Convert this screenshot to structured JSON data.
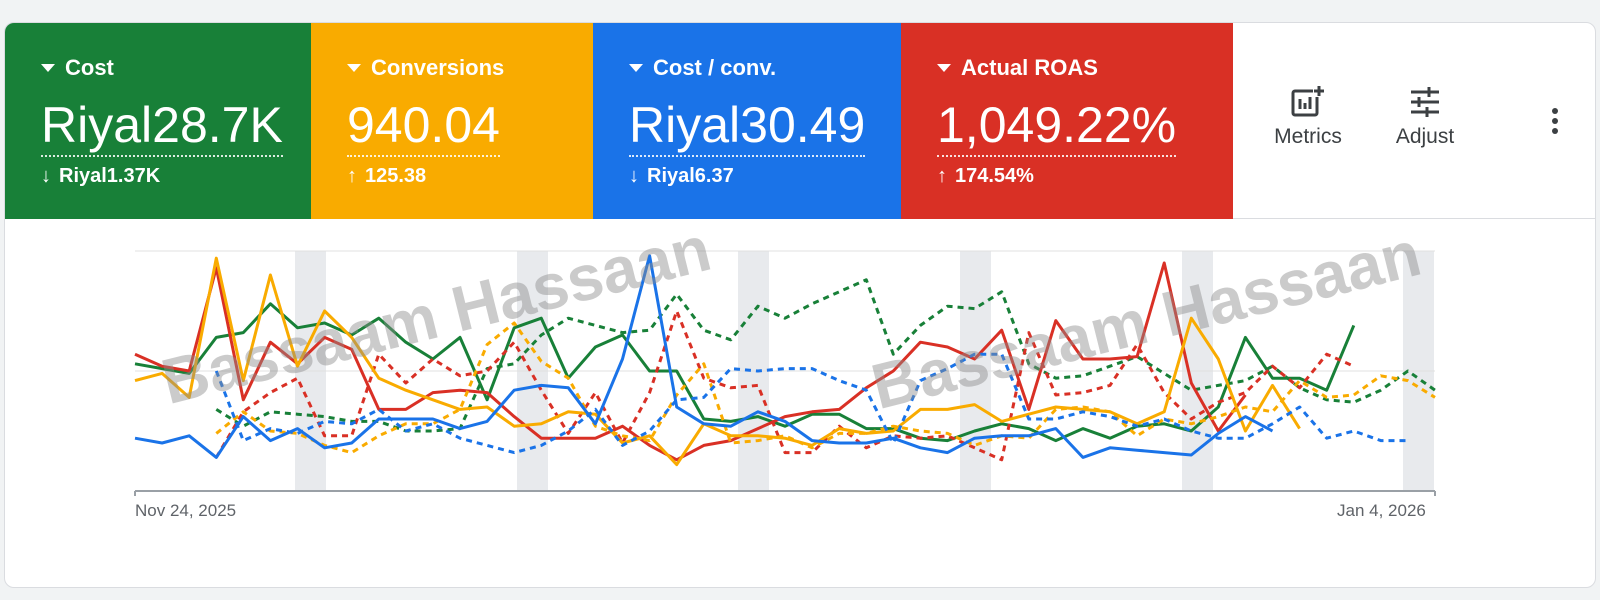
{
  "scorecards": [
    {
      "label": "Cost",
      "value": "Riyal28.7K",
      "delta": "Riyal1.37K",
      "direction": "down",
      "color": "#188038"
    },
    {
      "label": "Conversions",
      "value": "940.04",
      "delta": "125.38",
      "direction": "up",
      "color": "#f9ab00"
    },
    {
      "label": "Cost / conv.",
      "value": "Riyal30.49",
      "delta": "Riyal6.37",
      "direction": "down",
      "color": "#1a73e8"
    },
    {
      "label": "Actual ROAS",
      "value": "1,049.22%",
      "delta": "174.54%",
      "direction": "up",
      "color": "#d93025"
    }
  ],
  "toolbar": {
    "metrics_label": "Metrics",
    "adjust_label": "Adjust",
    "metrics_icon": "chart-add-icon",
    "adjust_icon": "sliders-icon",
    "more_icon": "more-vert-icon"
  },
  "watermark": "Bassaam Hassaan",
  "chart_data": {
    "type": "line",
    "x_start_label": "Nov 24, 2025",
    "x_end_label": "Jan 4, 2026",
    "grid": true,
    "series": [
      {
        "color": "#188038",
        "dashed": false,
        "values": [
          0.53,
          0.51,
          0.49,
          0.64,
          0.66,
          0.78,
          0.68,
          0.7,
          0.65,
          0.72,
          0.62,
          0.55,
          0.64,
          0.38,
          0.68,
          0.72,
          0.47,
          0.6,
          0.65,
          0.5,
          0.5,
          0.3,
          0.29,
          0.31,
          0.27,
          0.32,
          0.32,
          0.26,
          0.26,
          0.22,
          0.21,
          0.25,
          0.28,
          0.26,
          0.21,
          0.26,
          0.22,
          0.27,
          0.28,
          0.25,
          0.35,
          0.64,
          0.47,
          0.47,
          0.42,
          0.69
        ]
      },
      {
        "color": "#188038",
        "dashed": true,
        "values": [
          null,
          null,
          null,
          0.34,
          0.27,
          0.33,
          0.32,
          0.31,
          0.29,
          0.29,
          0.25,
          0.25,
          0.26,
          0.51,
          0.53,
          0.65,
          0.72,
          0.69,
          0.66,
          0.67,
          0.82,
          0.67,
          0.63,
          0.77,
          0.72,
          0.78,
          0.83,
          0.88,
          0.57,
          0.69,
          0.77,
          0.76,
          0.83,
          0.53,
          0.47,
          0.48,
          0.52,
          0.56,
          0.49,
          0.42,
          0.44,
          0.46,
          0.52,
          0.43,
          0.38,
          0.37,
          0.42,
          0.5,
          0.42
        ]
      },
      {
        "color": "#d93025",
        "dashed": false,
        "values": [
          0.57,
          0.52,
          0.5,
          0.93,
          0.38,
          0.62,
          0.53,
          0.64,
          0.59,
          0.34,
          0.34,
          0.41,
          0.42,
          0.41,
          0.31,
          0.22,
          0.22,
          0.22,
          0.27,
          0.19,
          0.13,
          0.19,
          0.21,
          0.26,
          0.31,
          0.33,
          0.34,
          0.43,
          0.5,
          0.62,
          0.6,
          0.55,
          0.67,
          0.34,
          0.71,
          0.55,
          0.55,
          0.56,
          0.95,
          0.45,
          0.25,
          0.4
        ]
      },
      {
        "color": "#d93025",
        "dashed": true,
        "values": [
          null,
          null,
          null,
          0.14,
          0.33,
          0.41,
          0.47,
          0.23,
          0.23,
          0.57,
          0.45,
          0.55,
          0.48,
          0.5,
          0.62,
          0.42,
          0.24,
          0.41,
          0.2,
          0.41,
          0.75,
          0.47,
          0.43,
          0.44,
          0.16,
          0.16,
          0.27,
          0.18,
          0.23,
          0.22,
          0.23,
          0.18,
          0.13,
          0.66,
          0.4,
          0.41,
          0.44,
          0.61,
          0.41,
          0.3,
          0.37,
          0.41,
          0.52,
          0.43,
          0.57,
          0.52
        ]
      },
      {
        "color": "#f9ab00",
        "dashed": false,
        "values": [
          0.46,
          0.49,
          0.39,
          0.97,
          0.46,
          0.9,
          0.52,
          0.75,
          0.64,
          0.47,
          0.42,
          0.38,
          0.34,
          0.35,
          0.27,
          0.28,
          0.33,
          0.32,
          0.2,
          0.23,
          0.11,
          0.28,
          0.23,
          0.23,
          0.22,
          0.19,
          0.26,
          0.24,
          0.25,
          0.34,
          0.34,
          0.36,
          0.29,
          0.32,
          0.35,
          0.34,
          0.33,
          0.28,
          0.33,
          0.72,
          0.55,
          0.25,
          0.44,
          0.26
        ]
      },
      {
        "color": "#f9ab00",
        "dashed": true,
        "values": [
          null,
          null,
          null,
          0.24,
          0.33,
          0.25,
          0.24,
          0.19,
          0.16,
          0.23,
          0.28,
          0.28,
          0.34,
          0.61,
          0.7,
          0.54,
          0.47,
          0.27,
          0.23,
          0.21,
          0.4,
          0.53,
          0.2,
          0.21,
          0.23,
          0.18,
          0.24,
          0.24,
          0.27,
          0.25,
          0.24,
          0.19,
          0.23,
          0.22,
          0.34,
          0.35,
          0.33,
          0.23,
          0.3,
          0.28,
          0.31,
          0.35,
          0.33,
          0.46,
          0.39,
          0.4,
          0.48,
          0.46,
          0.39
        ]
      },
      {
        "color": "#1a73e8",
        "dashed": false,
        "values": [
          0.22,
          0.2,
          0.23,
          0.14,
          0.31,
          0.21,
          0.26,
          0.18,
          0.2,
          0.3,
          0.3,
          0.3,
          0.26,
          0.29,
          0.42,
          0.44,
          0.43,
          0.28,
          0.55,
          0.98,
          0.35,
          0.28,
          0.27,
          0.33,
          0.29,
          0.21,
          0.2,
          0.2,
          0.22,
          0.18,
          0.16,
          0.22,
          0.23,
          0.23,
          0.26,
          0.14,
          0.18,
          0.17,
          0.16,
          0.15,
          0.24,
          0.31,
          0.25
        ]
      },
      {
        "color": "#1a73e8",
        "dashed": true,
        "values": [
          null,
          null,
          null,
          0.5,
          0.21,
          0.26,
          0.24,
          0.29,
          0.28,
          0.34,
          0.25,
          0.28,
          0.22,
          0.19,
          0.16,
          0.19,
          0.25,
          0.34,
          0.19,
          0.25,
          0.38,
          0.39,
          0.51,
          0.5,
          0.51,
          0.51,
          0.46,
          0.42,
          0.2,
          0.46,
          0.51,
          0.57,
          0.57,
          0.3,
          0.3,
          0.33,
          0.31,
          0.27,
          0.3,
          0.25,
          0.22,
          0.22,
          0.28,
          0.35,
          0.22,
          0.25,
          0.21,
          0.21
        ]
      }
    ]
  }
}
